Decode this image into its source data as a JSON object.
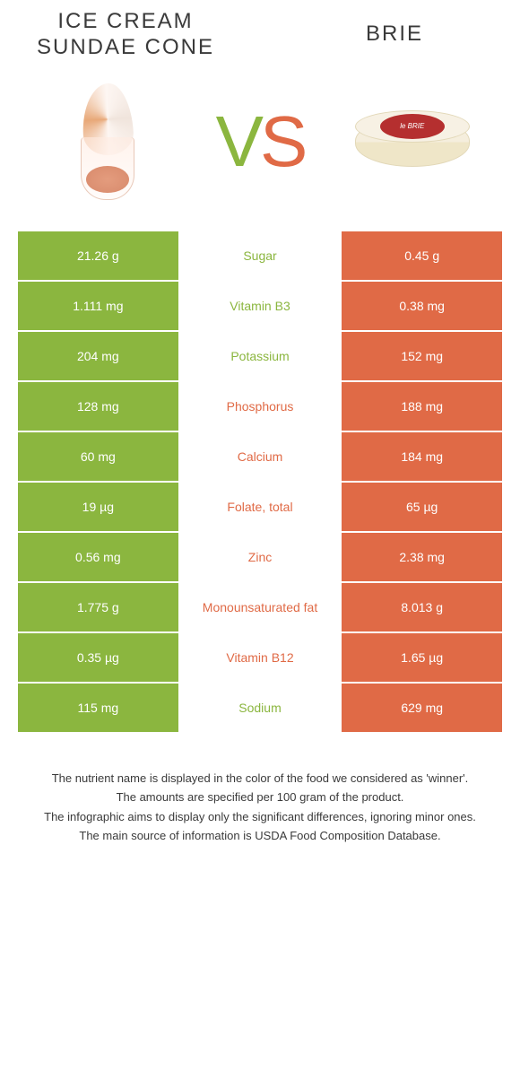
{
  "colors": {
    "green": "#8bb63f",
    "orange": "#e06a46",
    "text": "#3a3a3a",
    "white": "#ffffff"
  },
  "foods": {
    "left": {
      "name": "Ice Cream Sundae Cone",
      "color_key": "green"
    },
    "right": {
      "name": "Brie",
      "color_key": "orange"
    },
    "brie_label": "le BRIE"
  },
  "vs_text": {
    "v": "V",
    "s": "S"
  },
  "table": {
    "rows": [
      {
        "left": "21.26 g",
        "name": "Sugar",
        "right": "0.45 g",
        "winner": "left"
      },
      {
        "left": "1.111 mg",
        "name": "Vitamin B3",
        "right": "0.38 mg",
        "winner": "left"
      },
      {
        "left": "204 mg",
        "name": "Potassium",
        "right": "152 mg",
        "winner": "left"
      },
      {
        "left": "128 mg",
        "name": "Phosphorus",
        "right": "188 mg",
        "winner": "right"
      },
      {
        "left": "60 mg",
        "name": "Calcium",
        "right": "184 mg",
        "winner": "right"
      },
      {
        "left": "19 µg",
        "name": "Folate, total",
        "right": "65 µg",
        "winner": "right"
      },
      {
        "left": "0.56 mg",
        "name": "Zinc",
        "right": "2.38 mg",
        "winner": "right"
      },
      {
        "left": "1.775 g",
        "name": "Monounsaturated fat",
        "right": "8.013 g",
        "winner": "right"
      },
      {
        "left": "0.35 µg",
        "name": "Vitamin B12",
        "right": "1.65 µg",
        "winner": "right"
      },
      {
        "left": "115 mg",
        "name": "Sodium",
        "right": "629 mg",
        "winner": "left"
      }
    ]
  },
  "footer": {
    "line1": "The nutrient name is displayed in the color of the food we considered as 'winner'.",
    "line2": "The amounts are specified per 100 gram of the product.",
    "line3": "The infographic aims to display only the significant differences, ignoring minor ones.",
    "line4": "The main source of information is USDA Food Composition Database."
  }
}
